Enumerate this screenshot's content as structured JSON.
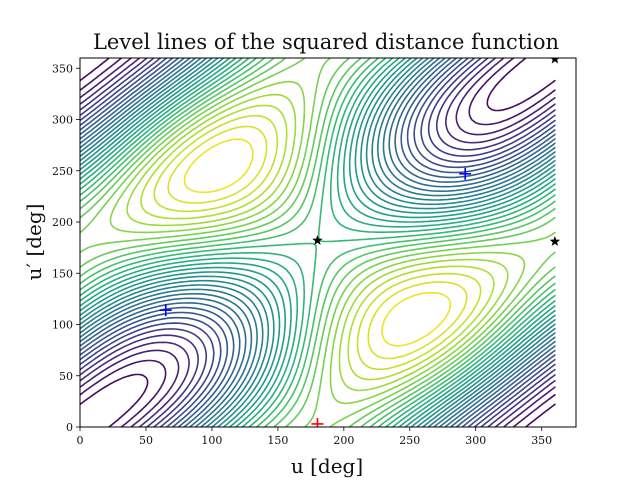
{
  "chart_data": {
    "type": "contour",
    "title": "Level lines of the squared distance function",
    "xlabel": "u [deg]",
    "ylabel": "u′ [deg]",
    "xlim": [
      0,
      376
    ],
    "ylim": [
      0,
      360
    ],
    "xticks": [
      0,
      50,
      100,
      150,
      200,
      250,
      300,
      350
    ],
    "yticks": [
      0,
      50,
      100,
      150,
      200,
      250,
      300,
      350
    ],
    "grid": false,
    "colormap": "viridis",
    "minima": [
      {
        "x": 65,
        "y": 114,
        "color": "#0000ff",
        "marker": "plus"
      },
      {
        "x": 292,
        "y": 247,
        "color": "#0000ff",
        "marker": "plus"
      }
    ],
    "maxima": [
      {
        "x": 180,
        "y": 3,
        "color": "#ff0000",
        "marker": "plus"
      }
    ],
    "saddles": [
      {
        "x": 180,
        "y": 182,
        "color": "#000000",
        "marker": "star"
      },
      {
        "x": 360,
        "y": 181,
        "color": "#000000",
        "marker": "star"
      },
      {
        "x": 360,
        "y": 359,
        "color": "#000000",
        "marker": "star"
      }
    ]
  }
}
